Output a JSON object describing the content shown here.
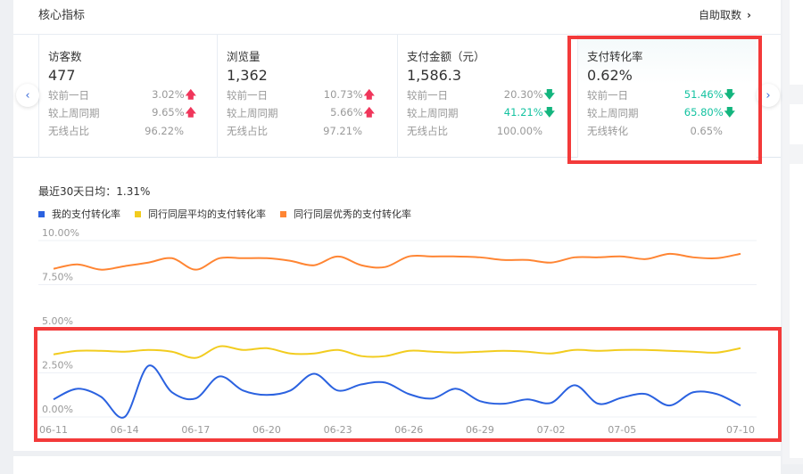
{
  "header": {
    "title": "核心指标",
    "self_service_label": "自助取数"
  },
  "metrics": [
    {
      "name": "访客数",
      "value": "477",
      "rows": [
        {
          "label": "较前一日",
          "value": "3.02%",
          "trend": "up"
        },
        {
          "label": "较上周同期",
          "value": "9.65%",
          "trend": "up"
        },
        {
          "label": "无线占比",
          "value": "96.22%",
          "trend": ""
        }
      ]
    },
    {
      "name": "浏览量",
      "value": "1,362",
      "rows": [
        {
          "label": "较前一日",
          "value": "10.73%",
          "trend": "up"
        },
        {
          "label": "较上周同期",
          "value": "5.66%",
          "trend": "up"
        },
        {
          "label": "无线占比",
          "value": "97.21%",
          "trend": ""
        }
      ]
    },
    {
      "name": "支付金额（元）",
      "value": "1,586.3",
      "rows": [
        {
          "label": "较前一日",
          "value": "20.30%",
          "trend": "down"
        },
        {
          "label": "较上周同期",
          "value": "41.21%",
          "trend": "down"
        },
        {
          "label": "无线占比",
          "value": "100.00%",
          "trend": ""
        }
      ]
    },
    {
      "name": "支付转化率",
      "value": "0.62%",
      "rows": [
        {
          "label": "较前一日",
          "value": "51.46%",
          "trend": "down"
        },
        {
          "label": "较上周同期",
          "value": "65.80%",
          "trend": "down"
        },
        {
          "label": "无线转化",
          "value": "0.65%",
          "trend": ""
        }
      ]
    }
  ],
  "nav": {
    "prev_icon": "‹",
    "next_icon": "›"
  },
  "avg_label": "最近30天日均：1.31%",
  "colors": {
    "up": "#f0365b",
    "down": "#13b57e",
    "highlight": "#f33a3a"
  },
  "chart_data": {
    "type": "line",
    "ylim": [
      0,
      10
    ],
    "yticks": [
      "0.00%",
      "2.50%",
      "5.00%",
      "7.50%",
      "10.00%"
    ],
    "ytick_values": [
      0,
      2.5,
      5,
      7.5,
      10
    ],
    "grid": true,
    "legend_position": "top-left",
    "x": [
      "06-11",
      "06-12",
      "06-13",
      "06-14",
      "06-15",
      "06-16",
      "06-17",
      "06-18",
      "06-19",
      "06-20",
      "06-21",
      "06-22",
      "06-23",
      "06-24",
      "06-25",
      "06-26",
      "06-27",
      "06-28",
      "06-29",
      "06-30",
      "07-01",
      "07-02",
      "07-03",
      "07-04",
      "07-05",
      "07-06",
      "07-07",
      "07-08",
      "07-09",
      "07-10"
    ],
    "xticks": [
      "06-11",
      "06-14",
      "06-17",
      "06-20",
      "06-23",
      "06-26",
      "06-29",
      "07-02",
      "07-05",
      "07-10"
    ],
    "series": [
      {
        "name": "我的支付转化率",
        "color": "#2b62e0",
        "values": [
          1.0,
          1.6,
          1.15,
          0.0,
          2.9,
          1.4,
          1.05,
          2.3,
          1.5,
          1.25,
          1.5,
          2.45,
          1.5,
          1.85,
          1.95,
          1.3,
          1.05,
          1.6,
          0.9,
          0.75,
          1.0,
          0.8,
          1.8,
          0.75,
          1.1,
          1.3,
          0.65,
          1.4,
          1.3,
          0.65
        ]
      },
      {
        "name": "同行同层平均的支付转化率",
        "color": "#f2cc1f",
        "values": [
          3.55,
          3.75,
          3.75,
          3.7,
          3.8,
          3.7,
          3.35,
          4.0,
          3.8,
          3.9,
          3.6,
          3.6,
          3.8,
          3.45,
          3.45,
          3.75,
          3.7,
          3.65,
          3.7,
          3.75,
          3.7,
          3.6,
          3.8,
          3.75,
          3.8,
          3.8,
          3.75,
          3.7,
          3.65,
          3.9
        ]
      },
      {
        "name": "同行同层优秀的支付转化率",
        "color": "#ff8533",
        "values": [
          8.4,
          8.65,
          8.35,
          8.55,
          8.75,
          9.0,
          8.35,
          9.0,
          9.0,
          9.0,
          8.85,
          8.6,
          9.1,
          8.6,
          8.5,
          9.1,
          9.1,
          9.1,
          9.05,
          8.9,
          8.9,
          8.75,
          9.05,
          9.05,
          9.1,
          8.95,
          9.25,
          9.05,
          9.0,
          9.25
        ]
      }
    ]
  }
}
